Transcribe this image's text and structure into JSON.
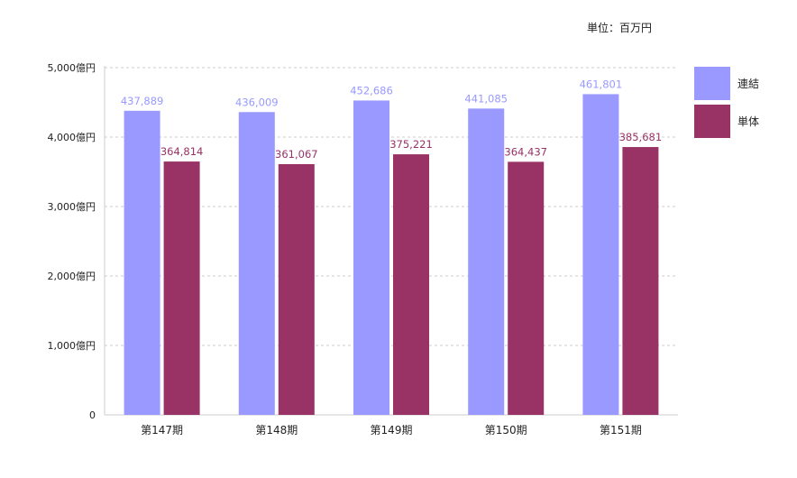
{
  "unit_note": "単位：百万円",
  "chart_data": {
    "type": "bar",
    "categories": [
      "第147期",
      "第148期",
      "第149期",
      "第150期",
      "第151期"
    ],
    "series": [
      {
        "name": "連結",
        "values": [
          437889,
          436009,
          452686,
          441085,
          461801
        ],
        "labels": [
          "437,889",
          "436,009",
          "452,686",
          "441,085",
          "461,801"
        ],
        "color": "#9999ff"
      },
      {
        "name": "単体",
        "values": [
          364814,
          361067,
          375221,
          364437,
          385681
        ],
        "labels": [
          "364,814",
          "361,067",
          "375,221",
          "364,437",
          "385,681"
        ],
        "color": "#993366"
      }
    ],
    "y_ticks": [
      {
        "value": 0,
        "label": "0"
      },
      {
        "value": 100000,
        "label": "1,000億円"
      },
      {
        "value": 200000,
        "label": "2,000億円"
      },
      {
        "value": 300000,
        "label": "3,000億円"
      },
      {
        "value": 400000,
        "label": "4,000億円"
      },
      {
        "value": 500000,
        "label": "5,000億円"
      }
    ],
    "ylim": [
      0,
      500000
    ],
    "grid": true,
    "legend_position": "right"
  }
}
